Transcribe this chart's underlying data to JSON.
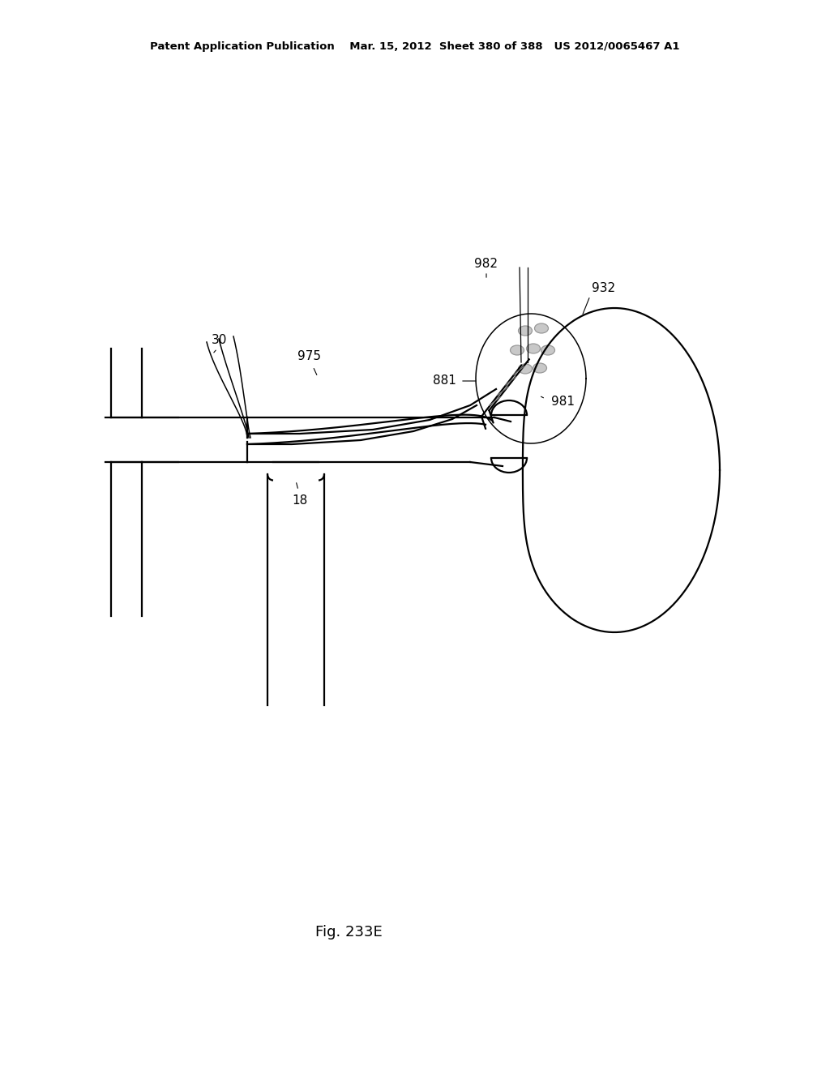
{
  "bg_color": "#ffffff",
  "line_color": "#000000",
  "header_text": "Patent Application Publication    Mar. 15, 2012  Sheet 380 of 388   US 2012/0065467 A1",
  "fig_label": "Fig. 233E",
  "label_fontsize": 11,
  "header_fontsize": 9.5,
  "fig_label_fontsize": 13
}
